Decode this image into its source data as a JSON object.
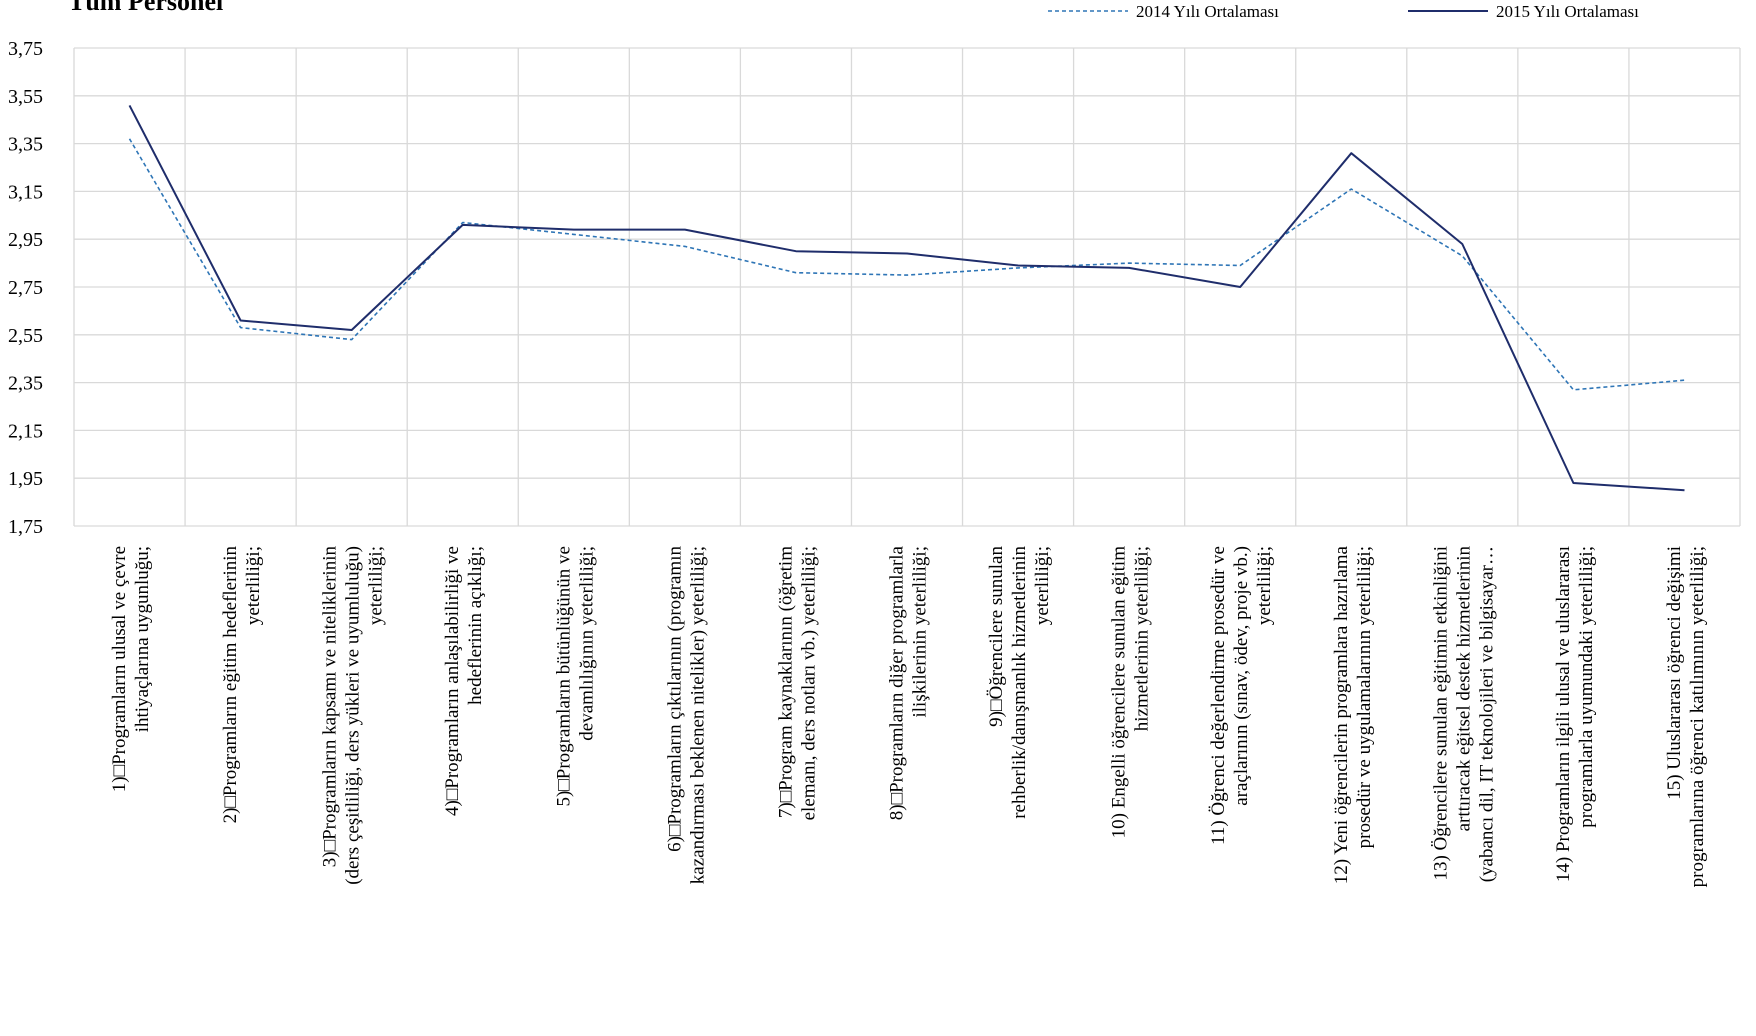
{
  "chart_data": {
    "type": "line",
    "title": "Tüm Personel",
    "xlabel": "",
    "ylabel": "",
    "ylim": [
      1.75,
      3.75
    ],
    "yticks": [
      "3,75",
      "3,55",
      "3,35",
      "3,15",
      "2,95",
      "2,75",
      "2,55",
      "2,35",
      "2,15",
      "1,95",
      "1,75"
    ],
    "ytick_values": [
      3.75,
      3.55,
      3.35,
      3.15,
      2.95,
      2.75,
      2.55,
      2.35,
      2.15,
      1.95,
      1.75
    ],
    "grid": true,
    "legend_position": "top-right",
    "categories": [
      [
        "1)□Programların ulusal ve çevre",
        "ihtiyaçlarına uygunluğu;"
      ],
      [
        "2)□Programların eğitim hedeflerinin",
        "yeterliliği;"
      ],
      [
        "3)□Programların kapsamı ve niteliklerinin",
        "(ders çeşitliliği, ders yükleri ve uyumluluğu)",
        "yeterliliği;"
      ],
      [
        "4)□Programların anlaşılabilirliği ve",
        "hedeflerinin açıklığı;"
      ],
      [
        "5)□Programların bütünlüğünün ve",
        "devamlılığının yeterliliği;"
      ],
      [
        "6)□Programların çıktılarının (programın",
        "kazandırması beklenen nitelikler) yeterliliği;"
      ],
      [
        "7)□Program kaynaklarının (öğretim",
        "elemanı, ders notları vb.)   yeterliliği;"
      ],
      [
        "8)□Programların diğer programlarla",
        "ilişkilerinin yeterliliği;"
      ],
      [
        "9)□Öğrencilere sunulan",
        "rehberlik/danışmanlık hizmetlerinin",
        "yeterliliği;"
      ],
      [
        "10) Engelli öğrencilere sunulan eğitim",
        "hizmetlerinin yeterliliği;"
      ],
      [
        "11) Öğrenci değerlendirme prosedür ve",
        "araçlarının (sınav, ödev, proje vb.)",
        "yeterliliği;"
      ],
      [
        "12) Yeni öğrencilerin programlara hazırlama",
        "prosedür ve uygulamalarının yeterliliği;"
      ],
      [
        "13) Öğrencilere sunulan eğitimin etkinliğini",
        "arttıracak eğitsel destek hizmetlerinin",
        "(yabancı dil, IT teknolojileri ve bilgisayar…"
      ],
      [
        "14) Programların ilgili ulusal ve uluslararası",
        "programlarla uyumundaki yeterliliği;"
      ],
      [
        "15) Uluslararası öğrenci değişimi",
        "programlarına öğrenci katılımının yeterliliği;"
      ]
    ],
    "series": [
      {
        "name": "2014 Yılı Ortalaması",
        "style": "dashed",
        "color": "#2E75B6",
        "values": [
          3.37,
          2.58,
          2.53,
          3.02,
          2.97,
          2.92,
          2.81,
          2.8,
          2.83,
          2.85,
          2.84,
          3.16,
          2.88,
          2.32,
          2.36
        ]
      },
      {
        "name": "2015 Yılı Ortalaması",
        "style": "solid",
        "color": "#1F2D6B",
        "values": [
          3.51,
          2.61,
          2.57,
          3.01,
          2.99,
          2.99,
          2.9,
          2.89,
          2.84,
          2.83,
          2.75,
          3.31,
          2.93,
          1.93,
          1.9
        ]
      }
    ]
  }
}
